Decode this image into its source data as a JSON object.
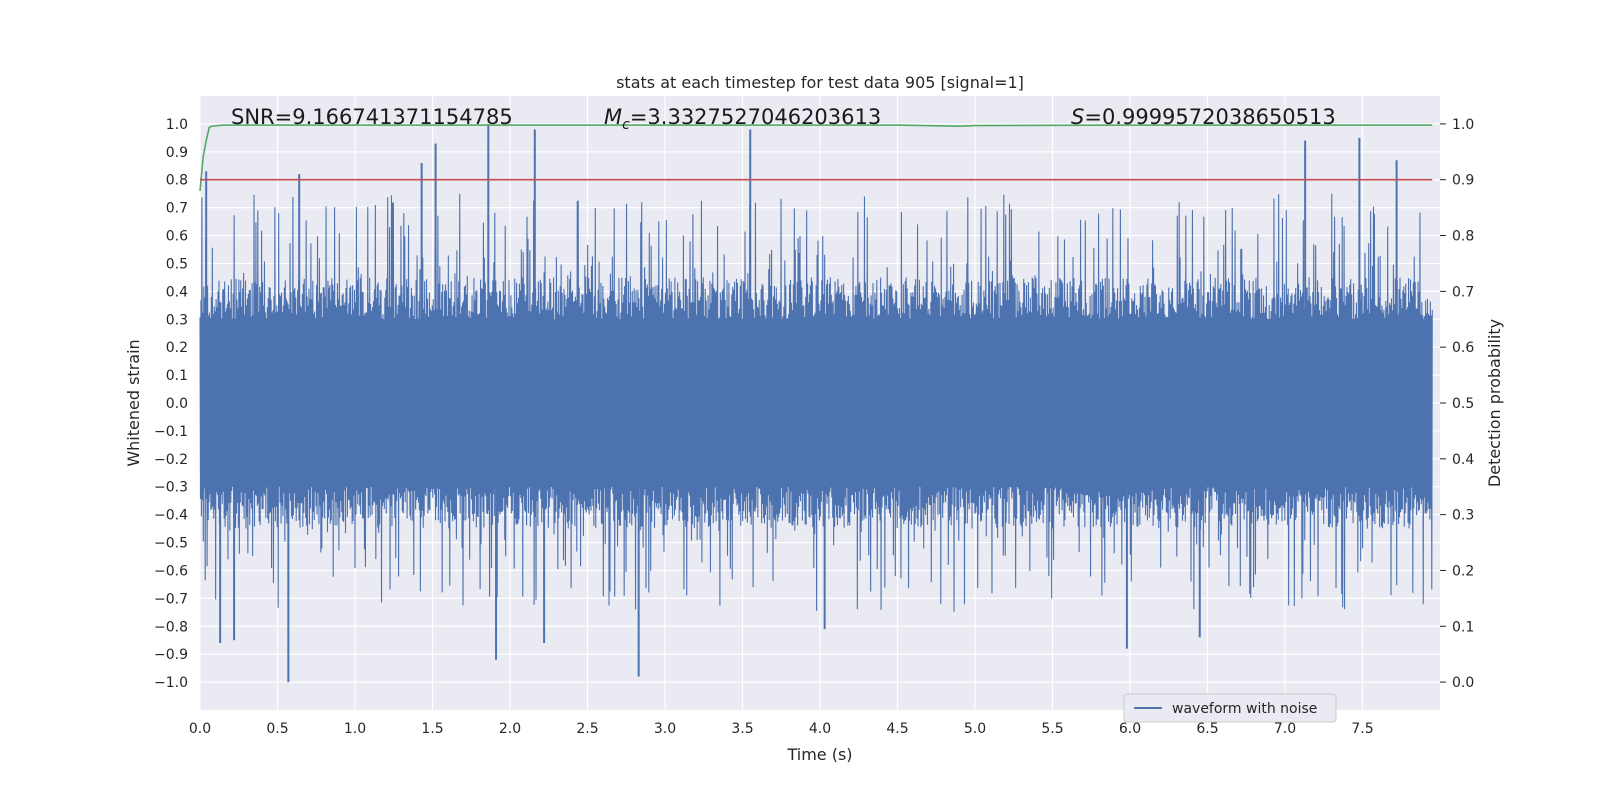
{
  "chart_data": {
    "type": "line",
    "title": "stats at each timestep for test data 905 [signal=1]",
    "xlabel": "Time (s)",
    "ylabel_left": "Whitened strain",
    "ylabel_right": "Detection probability",
    "xlim": [
      0,
      8
    ],
    "ylim_left": [
      -1.1,
      1.1
    ],
    "ylim_right": [
      -0.05,
      1.05
    ],
    "x_ticks": [
      0.0,
      0.5,
      1.0,
      1.5,
      2.0,
      2.5,
      3.0,
      3.5,
      4.0,
      4.5,
      5.0,
      5.5,
      6.0,
      6.5,
      7.0,
      7.5
    ],
    "x_tick_labels": [
      "0.0",
      "0.5",
      "1.0",
      "1.5",
      "2.0",
      "2.5",
      "3.0",
      "3.5",
      "4.0",
      "4.5",
      "5.0",
      "5.5",
      "6.0",
      "6.5",
      "7.0",
      "7.5"
    ],
    "y_left_ticks": [
      1.0,
      0.9,
      0.8,
      0.7,
      0.6,
      0.5,
      0.4,
      0.3,
      0.2,
      0.1,
      0.0,
      -0.1,
      -0.2,
      -0.3,
      -0.4,
      -0.5,
      -0.6,
      -0.7,
      -0.8,
      -0.9,
      -1.0
    ],
    "y_left_tick_labels": [
      "1.0",
      "0.9",
      "0.8",
      "0.7",
      "0.6",
      "0.5",
      "0.4",
      "0.3",
      "0.2",
      "0.1",
      "0.0",
      "−0.1",
      "−0.2",
      "−0.3",
      "−0.4",
      "−0.5",
      "−0.6",
      "−0.7",
      "−0.8",
      "−0.9",
      "−1.0"
    ],
    "y_right_ticks": [
      1.0,
      0.9,
      0.8,
      0.7,
      0.6,
      0.5,
      0.4,
      0.3,
      0.2,
      0.1,
      0.0
    ],
    "y_right_tick_labels": [
      "1.0",
      "0.9",
      "0.8",
      "0.7",
      "0.6",
      "0.5",
      "0.4",
      "0.3",
      "0.2",
      "0.1",
      "0.0"
    ],
    "annotations": {
      "snr": "SNR=9.166741371154785",
      "mc_symbol": "M",
      "mc_subscript": "c",
      "mc_value": "=3.3327527046203613",
      "s_symbol": "S",
      "s_value": "=0.9999572038650513"
    },
    "legend": {
      "placement": "lower-right",
      "entries": [
        "waveform with noise"
      ]
    },
    "grid": true,
    "colors": {
      "waveform": "#4c72b0",
      "probability": "#55a868",
      "threshold": "#c44e52",
      "background": "#eaeaf2"
    },
    "series": [
      {
        "name": "waveform with noise",
        "axis": "left",
        "color": "#4c72b0",
        "note_peaks": [
          {
            "x": 0.04,
            "y": 0.83
          },
          {
            "x": 0.05,
            "y": -0.42
          },
          {
            "x": 0.13,
            "y": -0.86
          },
          {
            "x": 0.22,
            "y": -0.85
          },
          {
            "x": 0.57,
            "y": -1.0
          },
          {
            "x": 0.64,
            "y": 0.82
          },
          {
            "x": 1.43,
            "y": 0.86
          },
          {
            "x": 1.52,
            "y": 0.93
          },
          {
            "x": 1.86,
            "y": 1.0
          },
          {
            "x": 1.91,
            "y": -0.92
          },
          {
            "x": 2.16,
            "y": 0.98
          },
          {
            "x": 2.22,
            "y": -0.86
          },
          {
            "x": 2.83,
            "y": -0.98
          },
          {
            "x": 3.55,
            "y": 0.98
          },
          {
            "x": 4.03,
            "y": -0.81
          },
          {
            "x": 5.98,
            "y": -0.88
          },
          {
            "x": 6.45,
            "y": -0.84
          },
          {
            "x": 7.13,
            "y": 0.94
          },
          {
            "x": 7.48,
            "y": 0.95
          },
          {
            "x": 7.72,
            "y": 0.87
          }
        ],
        "envelope_positive": 0.45,
        "envelope_negative": -0.45
      },
      {
        "name": "",
        "axis": "right",
        "color": "#55a868",
        "x": [
          0.0,
          0.02,
          0.04,
          0.06,
          0.08,
          0.15,
          0.5,
          1.0,
          2.0,
          3.0,
          4.0,
          4.5,
          4.9,
          5.0,
          6.0,
          7.0,
          7.95
        ],
        "y": [
          0.88,
          0.94,
          0.97,
          0.994,
          0.996,
          0.998,
          0.998,
          0.998,
          0.998,
          0.998,
          0.998,
          0.998,
          0.996,
          0.997,
          0.998,
          0.998,
          0.998
        ]
      },
      {
        "name": "",
        "axis": "right",
        "color": "#c44e52",
        "x": [
          0.0,
          7.95
        ],
        "y": [
          0.9,
          0.9
        ]
      }
    ]
  }
}
